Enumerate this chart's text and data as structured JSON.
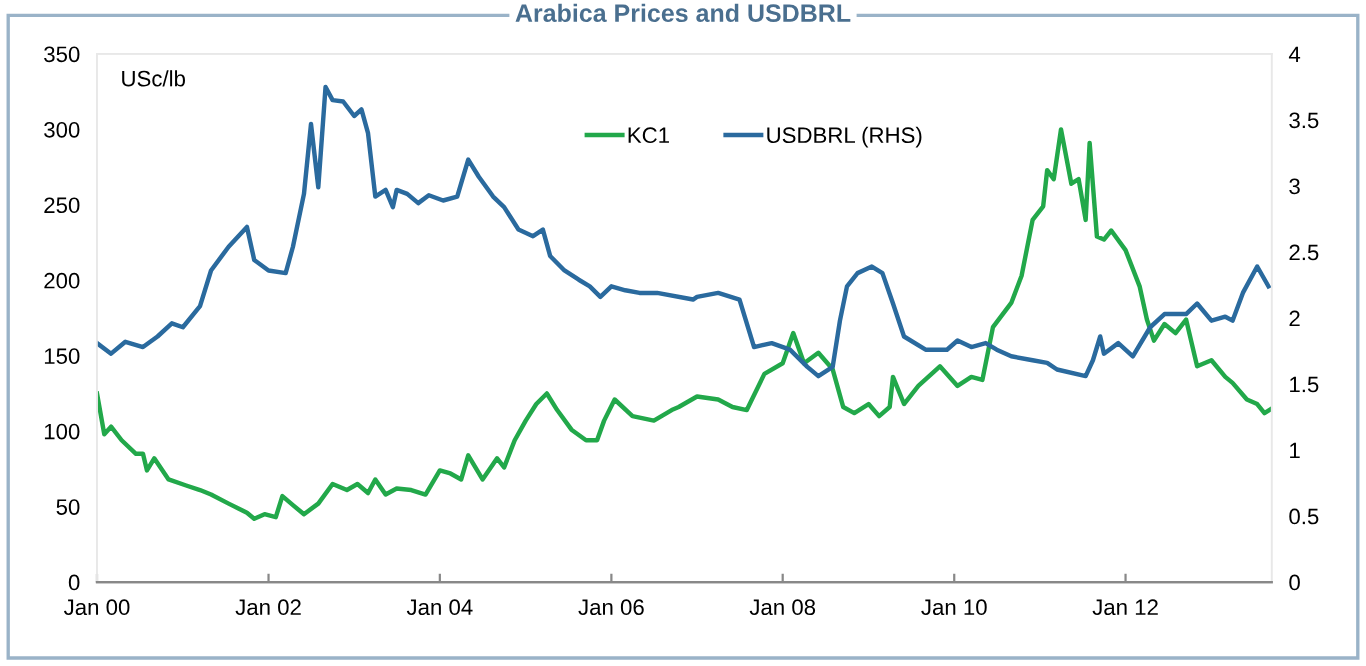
{
  "chart_data": {
    "type": "line",
    "title": "Arabica Prices and USDBRL",
    "ylabel": "USc/lb",
    "xlim": [
      "2000-01-01",
      "2013-09-15"
    ],
    "xticks": [
      {
        "value": "2000-01",
        "label": "Jan 00"
      },
      {
        "value": "2002-01",
        "label": "Jan 02"
      },
      {
        "value": "2004-01",
        "label": "Jan 04"
      },
      {
        "value": "2006-01",
        "label": "Jan 06"
      },
      {
        "value": "2008-01",
        "label": "Jan 08"
      },
      {
        "value": "2010-01",
        "label": "Jan 10"
      },
      {
        "value": "2012-01",
        "label": "Jan 12"
      }
    ],
    "ylim": [
      0,
      350
    ],
    "yticks": [
      0,
      50,
      100,
      150,
      200,
      250,
      300,
      350
    ],
    "y2lim": [
      0,
      4
    ],
    "y2ticks": [
      0,
      0.5,
      1,
      1.5,
      2,
      2.5,
      3,
      3.5,
      4
    ],
    "grid": false,
    "legend": "top right",
    "series": [
      {
        "name": "KC1",
        "color": "#22a84a",
        "x": [
          "2000-01-01",
          "2000-02-01",
          "2000-03-01",
          "2000-04-15",
          "2000-06-15",
          "2000-07-15",
          "2000-08-01",
          "2000-09-01",
          "2000-11-01",
          "2001-01-15",
          "2001-03-15",
          "2001-05-01",
          "2001-07-15",
          "2001-10-01",
          "2001-11-01",
          "2001-12-15",
          "2002-02-01",
          "2002-03-01",
          "2002-04-15",
          "2002-06-01",
          "2002-08-01",
          "2002-10-01",
          "2002-12-01",
          "2003-01-15",
          "2003-03-01",
          "2003-04-01",
          "2003-05-15",
          "2003-07-01",
          "2003-09-01",
          "2003-11-01",
          "2004-01-01",
          "2004-02-15",
          "2004-04-01",
          "2004-05-01",
          "2004-07-01",
          "2004-09-01",
          "2004-10-01",
          "2004-11-15",
          "2005-01-01",
          "2005-02-15",
          "2005-04-01",
          "2005-05-15",
          "2005-07-15",
          "2005-09-15",
          "2005-11-01",
          "2005-12-01",
          "2006-01-15",
          "2006-04-01",
          "2006-07-01",
          "2006-09-15",
          "2006-10-15",
          "2007-01-01",
          "2007-04-01",
          "2007-06-01",
          "2007-08-01",
          "2007-10-15",
          "2008-01-01",
          "2008-02-15",
          "2008-04-01",
          "2008-06-01",
          "2008-08-01",
          "2008-09-15",
          "2008-11-01",
          "2009-01-01",
          "2009-02-15",
          "2009-04-01",
          "2009-04-15",
          "2009-06-01",
          "2009-08-01",
          "2009-11-01",
          "2010-01-15",
          "2010-03-15",
          "2010-05-01",
          "2010-06-15",
          "2010-09-01",
          "2010-10-15",
          "2010-12-01",
          "2011-01-15",
          "2011-02-01",
          "2011-03-01",
          "2011-04-01",
          "2011-05-15",
          "2011-06-15",
          "2011-07-15",
          "2011-08-01",
          "2011-09-01",
          "2011-10-01",
          "2011-11-01",
          "2012-01-01",
          "2012-03-01",
          "2012-04-01",
          "2012-05-01",
          "2012-06-15",
          "2012-08-01",
          "2012-09-15",
          "2012-11-01",
          "2013-01-01",
          "2013-03-01",
          "2013-04-01",
          "2013-06-01",
          "2013-07-15",
          "2013-08-15",
          "2013-09-15"
        ],
        "values": [
          125,
          98,
          103,
          94,
          85,
          85,
          74,
          82,
          68,
          64,
          61,
          58,
          52,
          46,
          42,
          45,
          43,
          57,
          51,
          45,
          52,
          65,
          61,
          65,
          59,
          68,
          58,
          62,
          61,
          58,
          74,
          72,
          68,
          84,
          68,
          82,
          76,
          94,
          107,
          118,
          125,
          114,
          101,
          94,
          94,
          107,
          121,
          110,
          107,
          114,
          116,
          123,
          121,
          116,
          114,
          138,
          145,
          165,
          145,
          152,
          141,
          116,
          112,
          118,
          110,
          116,
          136,
          118,
          130,
          143,
          130,
          136,
          134,
          169,
          185,
          203,
          240,
          249,
          273,
          267,
          300,
          264,
          267,
          240,
          291,
          229,
          227,
          233,
          220,
          196,
          174,
          160,
          171,
          165,
          174,
          143,
          147,
          136,
          132,
          121,
          118,
          112,
          115
        ]
      },
      {
        "name": "USDBRL (RHS)",
        "color": "#2a6a9e",
        "axis": "y2",
        "x": [
          "2000-01-01",
          "2000-03-01",
          "2000-05-01",
          "2000-07-15",
          "2000-09-15",
          "2000-11-15",
          "2001-01-01",
          "2001-03-15",
          "2001-05-01",
          "2001-07-15",
          "2001-10-01",
          "2001-11-01",
          "2002-01-01",
          "2002-03-15",
          "2002-04-15",
          "2002-06-01",
          "2002-07-01",
          "2002-08-01",
          "2002-09-01",
          "2002-10-01",
          "2002-11-15",
          "2003-01-01",
          "2003-02-01",
          "2003-03-01",
          "2003-04-01",
          "2003-05-15",
          "2003-06-15",
          "2003-07-01",
          "2003-08-15",
          "2003-10-01",
          "2003-11-15",
          "2004-01-15",
          "2004-03-15",
          "2004-05-01",
          "2004-06-15",
          "2004-08-15",
          "2004-10-01",
          "2004-12-01",
          "2005-02-01",
          "2005-03-15",
          "2005-04-15",
          "2005-06-15",
          "2005-08-15",
          "2005-10-01",
          "2005-11-15",
          "2006-01-01",
          "2006-03-01",
          "2006-05-01",
          "2006-07-15",
          "2006-12-15",
          "2007-01-01",
          "2007-04-01",
          "2007-07-01",
          "2007-09-01",
          "2007-11-15",
          "2008-02-01",
          "2008-04-15",
          "2008-06-01",
          "2008-08-01",
          "2008-09-01",
          "2008-10-01",
          "2008-11-15",
          "2009-01-15",
          "2009-03-01",
          "2009-04-15",
          "2009-06-01",
          "2009-09-01",
          "2009-12-01",
          "2010-01-15",
          "2010-03-15",
          "2010-05-15",
          "2010-07-01",
          "2010-09-01",
          "2010-12-01",
          "2011-02-01",
          "2011-03-15",
          "2011-07-15",
          "2011-08-15",
          "2011-09-15",
          "2011-10-01",
          "2011-12-01",
          "2012-02-01",
          "2012-04-15",
          "2012-06-15",
          "2012-09-15",
          "2012-11-01",
          "2013-01-01",
          "2013-03-01",
          "2013-04-01",
          "2013-05-15",
          "2013-07-15",
          "2013-09-01"
        ],
        "values": [
          1.81,
          1.73,
          1.82,
          1.78,
          1.86,
          1.96,
          1.93,
          2.09,
          2.36,
          2.54,
          2.69,
          2.44,
          2.36,
          2.34,
          2.54,
          2.94,
          3.47,
          2.99,
          3.75,
          3.65,
          3.64,
          3.53,
          3.58,
          3.4,
          2.92,
          2.97,
          2.84,
          2.97,
          2.94,
          2.87,
          2.93,
          2.89,
          2.92,
          3.2,
          3.07,
          2.92,
          2.84,
          2.67,
          2.62,
          2.67,
          2.47,
          2.36,
          2.29,
          2.24,
          2.16,
          2.24,
          2.21,
          2.19,
          2.19,
          2.14,
          2.16,
          2.19,
          2.14,
          1.78,
          1.81,
          1.76,
          1.63,
          1.56,
          1.63,
          1.98,
          2.24,
          2.34,
          2.39,
          2.34,
          2.11,
          1.86,
          1.76,
          1.76,
          1.83,
          1.78,
          1.81,
          1.76,
          1.71,
          1.68,
          1.66,
          1.61,
          1.56,
          1.68,
          1.86,
          1.73,
          1.81,
          1.71,
          1.93,
          2.03,
          2.03,
          2.11,
          1.98,
          2.01,
          1.98,
          2.19,
          2.39,
          2.24
        ]
      }
    ]
  }
}
